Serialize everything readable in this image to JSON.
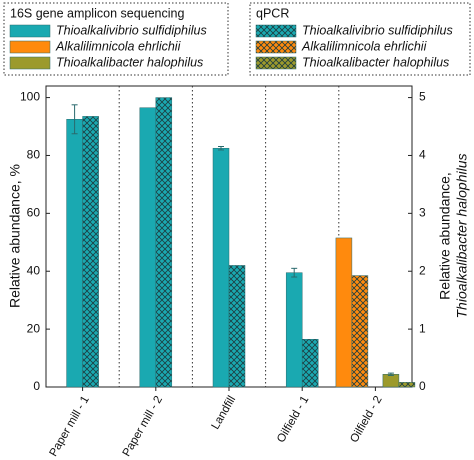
{
  "chart_data": {
    "type": "bar",
    "categories": [
      "Paper mill - 1",
      "Paper mill - 2",
      "Landfill",
      "Oilfield - 1",
      "Oilfield - 2"
    ],
    "y_label": "Relative abundance, %",
    "y2_label": [
      "Relative abundance,",
      "Thioalkalibacter halophilus"
    ],
    "ylim": [
      0,
      104
    ],
    "yticks": [
      0,
      20,
      40,
      60,
      80,
      100
    ],
    "y2lim": [
      0,
      5.2
    ],
    "y2ticks": [
      0,
      1,
      2,
      3,
      4,
      5
    ],
    "legends": [
      {
        "title": "16S gene amplicon sequencing",
        "hatched": false
      },
      {
        "title": "qPCR",
        "hatched": true
      }
    ],
    "series": [
      {
        "name": "Thioalkalivibrio sulfidiphilus",
        "color": "#1aa9b1",
        "hatched": false,
        "values": [
          92.5,
          96.5,
          82.5,
          39.5,
          null
        ],
        "errors": [
          5,
          null,
          0.6,
          1.5,
          null
        ]
      },
      {
        "name": "Alkalilimnicola ehrlichii",
        "color": "#ff8a0d",
        "hatched": false,
        "values": [
          null,
          null,
          null,
          null,
          51.5
        ],
        "errors": [
          null,
          null,
          null,
          null,
          null
        ]
      },
      {
        "name": "Thioalkalibacter halophilus",
        "color": "#9c9a2c",
        "hatched": false,
        "axis": "y2",
        "values": [
          null,
          null,
          null,
          null,
          0.22
        ],
        "errors": [
          null,
          null,
          null,
          null,
          0.02
        ]
      },
      {
        "name": "Thioalkalivibrio sulfidiphilus",
        "color": "#1aa9b1",
        "hatched": true,
        "values": [
          93.5,
          100,
          42,
          16.5,
          null
        ],
        "errors": [
          null,
          null,
          null,
          null,
          null
        ]
      },
      {
        "name": "Alkalilimnicola ehrlichii",
        "color": "#ff8a0d",
        "hatched": true,
        "values": [
          null,
          null,
          null,
          null,
          38.5
        ],
        "errors": [
          null,
          null,
          null,
          null,
          null
        ]
      },
      {
        "name": "Thioalkalibacter halophilus",
        "color": "#9c9a2c",
        "hatched": true,
        "axis": "y2",
        "values": [
          null,
          null,
          null,
          null,
          0.08
        ],
        "errors": [
          null,
          null,
          null,
          null,
          null
        ]
      }
    ]
  }
}
